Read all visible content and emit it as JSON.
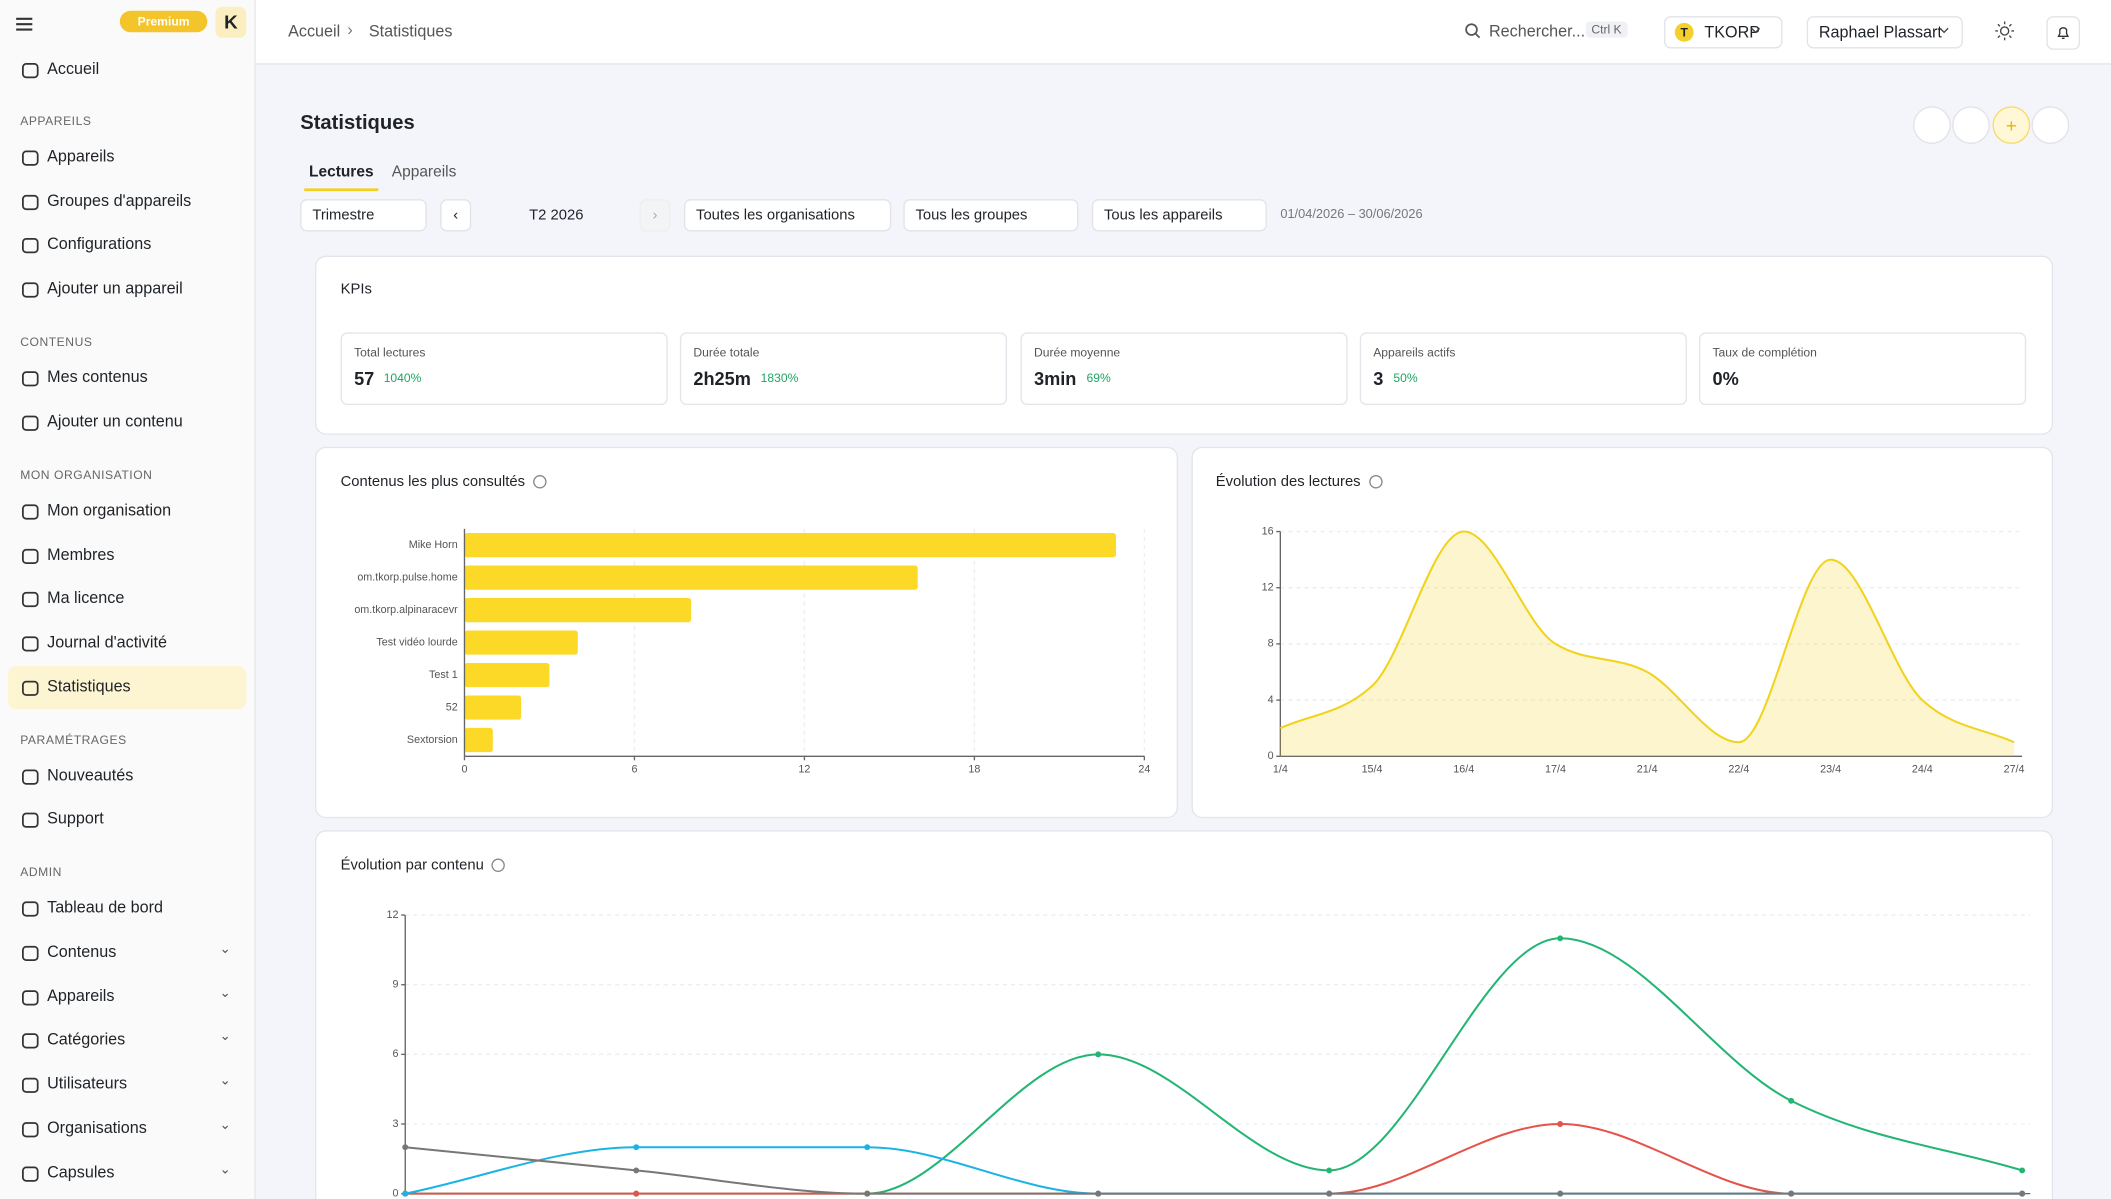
{
  "header": {
    "premium": "Premium",
    "logo": "K",
    "breadcrumb": [
      "Accueil",
      "Statistiques"
    ],
    "search": "Rechercher...",
    "shortcut": "Ctrl K",
    "org_initial": "T",
    "org": "TKORP",
    "user": "Raphael Plassart"
  },
  "sidebar": {
    "home": "Accueil",
    "sections": [
      {
        "title": "APPAREILS",
        "items": [
          {
            "label": "Appareils"
          },
          {
            "label": "Groupes d'appareils"
          },
          {
            "label": "Configurations"
          },
          {
            "label": "Ajouter un appareil"
          }
        ]
      },
      {
        "title": "CONTENUS",
        "items": [
          {
            "label": "Mes contenus"
          },
          {
            "label": "Ajouter un contenu"
          }
        ]
      },
      {
        "title": "MON ORGANISATION",
        "items": [
          {
            "label": "Mon organisation"
          },
          {
            "label": "Membres"
          },
          {
            "label": "Ma licence"
          },
          {
            "label": "Journal d'activité"
          },
          {
            "label": "Statistiques",
            "active": true
          }
        ]
      },
      {
        "title": "PARAMÉTRAGES",
        "items": [
          {
            "label": "Nouveautés"
          },
          {
            "label": "Support"
          }
        ]
      },
      {
        "title": "ADMIN",
        "items": [
          {
            "label": "Tableau de bord"
          },
          {
            "label": "Contenus",
            "expandable": true
          },
          {
            "label": "Appareils",
            "expandable": true
          },
          {
            "label": "Catégories",
            "expandable": true
          },
          {
            "label": "Utilisateurs",
            "expandable": true
          },
          {
            "label": "Organisations",
            "expandable": true
          },
          {
            "label": "Capsules",
            "expandable": true
          }
        ]
      }
    ]
  },
  "page": {
    "title": "Statistiques",
    "tabs": [
      "Lectures",
      "Appareils"
    ],
    "period_type": "Trimestre",
    "period": "T2 2026",
    "filters": [
      "Toutes les organisations",
      "Tous les groupes",
      "Tous les appareils"
    ],
    "date_range": "01/04/2026 – 30/06/2026"
  },
  "kpis": {
    "title": "KPIs",
    "items": [
      {
        "label": "Total lectures",
        "value": "57",
        "change": "1040%"
      },
      {
        "label": "Durée totale",
        "value": "2h25m",
        "change": "1830%"
      },
      {
        "label": "Durée moyenne",
        "value": "3min",
        "change": "69%"
      },
      {
        "label": "Appareils actifs",
        "value": "3",
        "change": "50%"
      },
      {
        "label": "Taux de complétion",
        "value": "0%"
      }
    ]
  },
  "chart_data": [
    {
      "type": "bar",
      "orientation": "horizontal",
      "title": "Contenus les plus consultés",
      "categories": [
        "Mike Horn",
        "om.tkorp.pulse.home",
        "om.tkorp.alpinaracevr",
        "Test vidéo lourde",
        "Test 1",
        "52",
        "Sextorsion"
      ],
      "values": [
        23,
        16,
        8,
        4,
        3,
        2,
        1
      ],
      "color": "#fcd927",
      "xlim": [
        0,
        24
      ],
      "xticks": [
        0,
        6,
        12,
        18,
        24
      ],
      "grid": true
    },
    {
      "type": "area",
      "title": "Évolution des lectures",
      "categories": [
        "1/4",
        "15/4",
        "16/4",
        "17/4",
        "21/4",
        "22/4",
        "23/4",
        "24/4",
        "27/4"
      ],
      "values": [
        2,
        5,
        16,
        8,
        6,
        1,
        14,
        4,
        1
      ],
      "color": "#f2d21b",
      "ylim": [
        0,
        16
      ],
      "yticks": [
        0,
        4,
        8,
        12,
        16
      ],
      "grid": true
    },
    {
      "type": "line",
      "title": "Évolution par contenu",
      "categories": [
        null,
        null,
        null,
        null,
        null,
        null,
        null,
        null
      ],
      "ylim": [
        0,
        12
      ],
      "yticks": [
        0,
        3,
        6,
        9,
        12
      ],
      "grid": true,
      "series": [
        {
          "color": "#22b573",
          "values": [
            0,
            0,
            0,
            6,
            1,
            11,
            4,
            1
          ]
        },
        {
          "color": "#e5534b",
          "values": [
            0,
            0,
            0,
            0,
            0,
            3,
            0,
            0
          ]
        },
        {
          "color": "#1ab3e6",
          "values": [
            0,
            2,
            2,
            0,
            0,
            0,
            0,
            0
          ]
        },
        {
          "color": "#777777",
          "values": [
            2,
            1,
            0,
            0,
            0,
            0,
            0,
            0
          ]
        }
      ]
    }
  ]
}
